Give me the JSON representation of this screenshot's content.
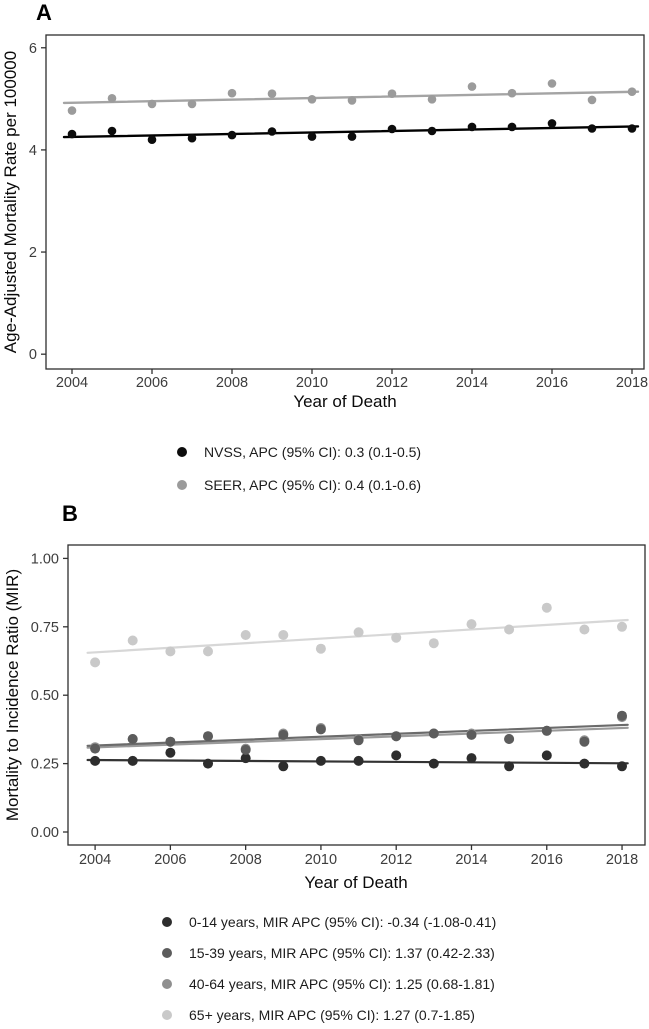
{
  "chart_data": [
    {
      "id": "panel_a",
      "type": "scatter",
      "title": "A",
      "xlabel": "Year of Death",
      "ylabel": "Age-Adjusted Mortality Rate per 100000",
      "x": [
        2004,
        2005,
        2006,
        2007,
        2008,
        2009,
        2010,
        2011,
        2012,
        2013,
        2014,
        2015,
        2016,
        2017,
        2018
      ],
      "xticks": [
        2004,
        2006,
        2008,
        2010,
        2012,
        2014,
        2016,
        2018
      ],
      "xtick_labels": [
        "2004",
        "2006",
        "2008",
        "2010",
        "2012",
        "2014",
        "2016",
        "2018"
      ],
      "yticks": [
        0,
        2,
        4,
        6
      ],
      "ytick_labels": [
        "0",
        "2",
        "4",
        "6"
      ],
      "xlim": [
        2003.35,
        2018.3
      ],
      "ylim": [
        -0.29,
        6.25
      ],
      "grid": false,
      "legend_position": "bottom",
      "legend_order": [
        "NVSS",
        "SEER"
      ],
      "series": [
        {
          "name": "NVSS",
          "legend_label": "NVSS, APC (95% CI): 0.3 (0.1-0.5)",
          "color": "#0c0c0c",
          "line_color": "#000000",
          "values": [
            4.31,
            4.37,
            4.2,
            4.23,
            4.29,
            4.36,
            4.26,
            4.26,
            4.41,
            4.37,
            4.45,
            4.45,
            4.52,
            4.42,
            4.42
          ],
          "trend": {
            "x": [
              2003.8,
              2018.15
            ],
            "y": [
              4.25,
              4.46
            ]
          }
        },
        {
          "name": "SEER",
          "legend_label": "SEER, APC (95% CI): 0.4 (0.1-0.6)",
          "color": "#9b9b9b",
          "line_color": "#a4a4a4",
          "values": [
            4.77,
            5.01,
            4.9,
            4.9,
            5.11,
            5.1,
            4.99,
            4.97,
            5.1,
            4.99,
            5.24,
            5.11,
            5.3,
            4.98,
            5.14
          ],
          "trend": {
            "x": [
              2003.8,
              2018.15
            ],
            "y": [
              4.92,
              5.14
            ]
          }
        }
      ]
    },
    {
      "id": "panel_b",
      "type": "scatter",
      "title": "B",
      "xlabel": "Year of Death",
      "ylabel": "Mortality to Incidence Ratio (MIR)",
      "x": [
        2004,
        2005,
        2006,
        2007,
        2008,
        2009,
        2010,
        2011,
        2012,
        2013,
        2014,
        2015,
        2016,
        2017,
        2018
      ],
      "xticks": [
        2004,
        2006,
        2008,
        2010,
        2012,
        2014,
        2016,
        2018
      ],
      "xtick_labels": [
        "2004",
        "2006",
        "2008",
        "2010",
        "2012",
        "2014",
        "2016",
        "2018"
      ],
      "yticks": [
        0,
        0.25,
        0.5,
        0.75,
        1
      ],
      "ytick_labels": [
        "0.00",
        "0.25",
        "0.50",
        "0.75",
        "1.00"
      ],
      "xlim": [
        2003.28,
        2018.61
      ],
      "ylim": [
        -0.0475,
        1.049
      ],
      "grid": false,
      "legend_position": "bottom",
      "legend_order": [
        "0-14 years",
        "15-39 years",
        "40-64 years",
        "65+ years"
      ],
      "series": [
        {
          "name": "65+ years",
          "legend_label": "65+ years, MIR APC (95% CI): 1.27 (0.7-1.85)",
          "color": "#c9c9c9",
          "line_color": "#d7d7d7",
          "values": [
            0.62,
            0.7,
            0.66,
            0.66,
            0.72,
            0.72,
            0.67,
            0.73,
            0.71,
            0.69,
            0.76,
            0.74,
            0.82,
            0.74,
            0.75
          ],
          "trend": {
            "x": [
              2003.8,
              2018.15
            ],
            "y": [
              0.655,
              0.775
            ]
          }
        },
        {
          "name": "15-39 years",
          "legend_label": "15-39 years, MIR APC (95% CI): 1.37 (0.42-2.33)",
          "color": "#5c5c5c",
          "line_color": "#6b6b6b",
          "values": [
            0.305,
            0.34,
            0.33,
            0.35,
            0.3,
            0.355,
            0.375,
            0.335,
            0.35,
            0.36,
            0.355,
            0.34,
            0.37,
            0.33,
            0.425
          ],
          "trend": {
            "x": [
              2003.8,
              2018.15
            ],
            "y": [
              0.315,
              0.392
            ]
          }
        },
        {
          "name": "40-64 years",
          "legend_label": "40-64 years, MIR APC (95% CI): 1.25 (0.68-1.81)",
          "color": "#8f8f8f",
          "line_color": "#9a9a9a",
          "values": [
            0.31,
            0.34,
            0.33,
            0.35,
            0.305,
            0.36,
            0.38,
            0.34,
            0.35,
            0.36,
            0.36,
            0.34,
            0.37,
            0.335,
            0.42
          ],
          "trend": {
            "x": [
              2003.8,
              2018.15
            ],
            "y": [
              0.308,
              0.381
            ]
          }
        },
        {
          "name": "0-14 years",
          "legend_label": "0-14 years, MIR APC (95% CI): -0.34 (-1.08-0.41)",
          "color": "#2d2d2d",
          "line_color": "#333333",
          "values": [
            0.26,
            0.26,
            0.29,
            0.25,
            0.27,
            0.24,
            0.26,
            0.26,
            0.28,
            0.25,
            0.27,
            0.24,
            0.28,
            0.25,
            0.24
          ],
          "trend": {
            "x": [
              2003.8,
              2018.15
            ],
            "y": [
              0.263,
              0.251
            ]
          }
        }
      ]
    }
  ]
}
